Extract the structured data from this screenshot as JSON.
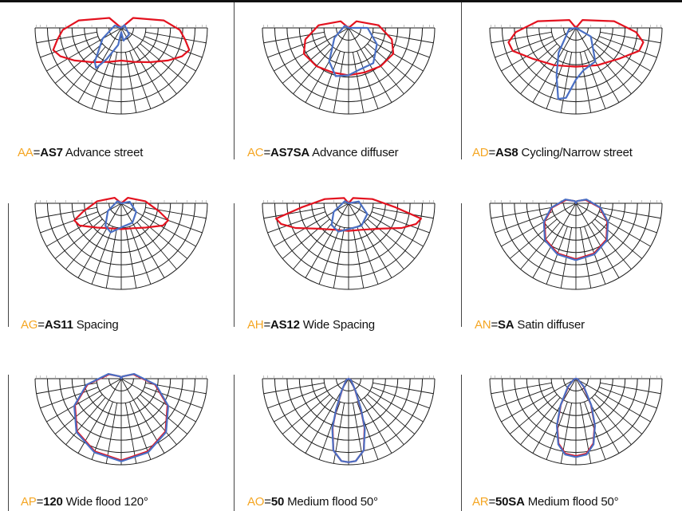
{
  "colors": {
    "code": "#f5a623",
    "red_curve": "#e3121f",
    "blue_curve": "#4a6fc4",
    "grid": "#1a1a1a"
  },
  "cells": [
    {
      "code": "AA",
      "eq": "=",
      "model": "AS7",
      "desc": " Advance street",
      "curve_type": "street"
    },
    {
      "code": "AC",
      "eq": "=",
      "model": "AS7SA",
      "desc": " Advance diffuser",
      "curve_type": "diffuser"
    },
    {
      "code": "AD",
      "eq": "=",
      "model": "AS8",
      "desc": " Cycling/Narrow street",
      "curve_type": "narrow"
    },
    {
      "code": "AG",
      "eq": "=",
      "model": "AS11",
      "desc": " Spacing",
      "curve_type": "spacing"
    },
    {
      "code": "AH",
      "eq": "=",
      "model": "AS12",
      "desc": " Wide Spacing",
      "curve_type": "wide_spacing"
    },
    {
      "code": "AN",
      "eq": "=",
      "model": "SA",
      "desc": " Satin diffuser",
      "curve_type": "satin"
    },
    {
      "code": "AP",
      "eq": "=",
      "model": "120",
      "desc": " Wide flood 120°",
      "curve_type": "flood120"
    },
    {
      "code": "AO",
      "eq": "=",
      "model": "50",
      "desc": " Medium flood 50°",
      "curve_type": "flood50"
    },
    {
      "code": "AR",
      "eq": "=",
      "model": "50SA",
      "desc": " Medium flood 50°",
      "curve_type": "flood50sa"
    }
  ]
}
